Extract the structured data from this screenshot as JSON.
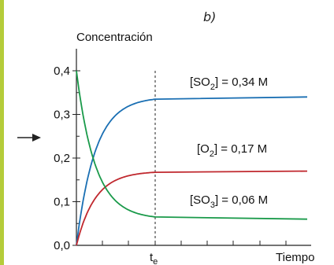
{
  "panel_label": "b)",
  "chart_data": {
    "type": "line",
    "ylabel": "Concentración",
    "xlabel": "Tiempo",
    "ylim": [
      0,
      0.42
    ],
    "y_ticks": [
      {
        "value": 0.0,
        "label": "0,0"
      },
      {
        "value": 0.1,
        "label": "0,1"
      },
      {
        "value": 0.2,
        "label": "0,2"
      },
      {
        "value": 0.3,
        "label": "0,3"
      },
      {
        "value": 0.4,
        "label": "0,4"
      }
    ],
    "equilibrium_tick": {
      "main": "t",
      "sub": "e"
    },
    "series": [
      {
        "id": "so2",
        "color": "#1a6fb3",
        "start": 0.0,
        "end": 0.34,
        "label": {
          "pre": "[SO",
          "sub": "2",
          "post": "] = 0,34 M"
        }
      },
      {
        "id": "o2",
        "color": "#c0282e",
        "start": 0.0,
        "end": 0.17,
        "label": {
          "pre": "[O",
          "sub": "2",
          "post": "] = 0,17 M"
        }
      },
      {
        "id": "so3",
        "color": "#1a9a4a",
        "start": 0.4,
        "end": 0.06,
        "label": {
          "pre": "[SO",
          "sub": "3",
          "post": "] = 0,06 M"
        }
      }
    ],
    "colors": {
      "sidebar": "#b5cc3a",
      "axis": "#222222",
      "arrow": "#222222"
    }
  }
}
